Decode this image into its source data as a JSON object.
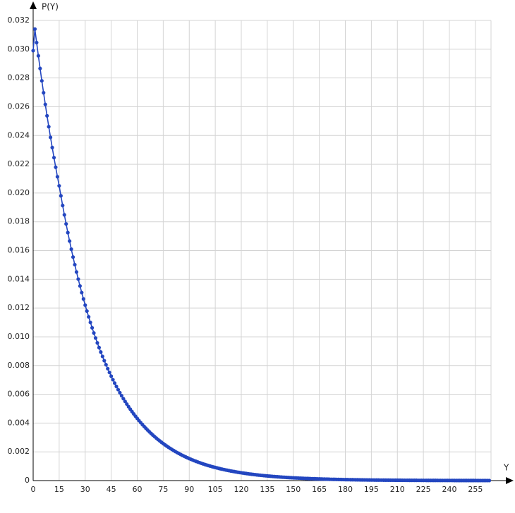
{
  "chart_data": {
    "type": "line",
    "x_label": "Y",
    "y_label": "P(Y)",
    "xlim": [
      0,
      264
    ],
    "ylim": [
      0,
      0.032
    ],
    "xticks": [
      0,
      15,
      30,
      45,
      60,
      75,
      90,
      105,
      120,
      135,
      150,
      165,
      180,
      195,
      210,
      225,
      240,
      255
    ],
    "yticks": [
      0,
      0.002,
      0.004,
      0.006,
      0.008,
      {
        "value": 0.01,
        "label": "0.010"
      },
      0.012,
      0.014,
      0.016,
      0.018,
      {
        "value": 0.02,
        "label": "0.020"
      },
      0.022,
      0.024,
      0.026,
      0.028,
      {
        "value": 0.03,
        "label": "0.030"
      },
      0.032
    ],
    "grid": true,
    "x": [
      0,
      1,
      2,
      3,
      4,
      5,
      6,
      7,
      8,
      9,
      10,
      11,
      12,
      13,
      14,
      15,
      16,
      17,
      18,
      19,
      20,
      21,
      22,
      23,
      24,
      25,
      26,
      27,
      28,
      29,
      30,
      31,
      32,
      33,
      34,
      35,
      36,
      37,
      38,
      39,
      40,
      41,
      42,
      43,
      44,
      45,
      46,
      47,
      48,
      49,
      50,
      51,
      52,
      53,
      54,
      55,
      56,
      57,
      58,
      59,
      60,
      61,
      62,
      63,
      64,
      65,
      66,
      67,
      68,
      69,
      70,
      71,
      72,
      73,
      74,
      75,
      76,
      77,
      78,
      79,
      80,
      81,
      82,
      83,
      84,
      85,
      86,
      87,
      88,
      89,
      90,
      91,
      92,
      93,
      94,
      95,
      96,
      97,
      98,
      99,
      100,
      101,
      102,
      103,
      104,
      105,
      106,
      107,
      108,
      109,
      110,
      111,
      112,
      113,
      114,
      115,
      116,
      117,
      118,
      119,
      120,
      121,
      122,
      123,
      124,
      125,
      126,
      127,
      128,
      129,
      130,
      131,
      132,
      133,
      134,
      135,
      136,
      137,
      138,
      139,
      140,
      141,
      142,
      143,
      144,
      145,
      146,
      147,
      148,
      149,
      150,
      151,
      152,
      153,
      154,
      155,
      156,
      157,
      158,
      159,
      160,
      161,
      162,
      163,
      164,
      165,
      166,
      167,
      168,
      169,
      170,
      171,
      172,
      173,
      174,
      175,
      176,
      177,
      178,
      179,
      180,
      181,
      182,
      183,
      184,
      185,
      186,
      187,
      188,
      189,
      190,
      191,
      192,
      193,
      194,
      195,
      196,
      197,
      198,
      199,
      200,
      201,
      202,
      203,
      204,
      205,
      206,
      207,
      208,
      209,
      210,
      211,
      212,
      213,
      214,
      215,
      216,
      217,
      218,
      219,
      220,
      221,
      222,
      223,
      224,
      225,
      226,
      227,
      228,
      229,
      230,
      231,
      232,
      233,
      234,
      235,
      236,
      237,
      238,
      239,
      240,
      241,
      242,
      243,
      244,
      245,
      246,
      247,
      248,
      249,
      250,
      251,
      252,
      253,
      254,
      255,
      256,
      257,
      258,
      259,
      260,
      261,
      262,
      263
    ],
    "series": [
      {
        "color": "#2346c0",
        "values": [
          0.0299,
          0.0314,
          0.03046,
          0.02954,
          0.02866,
          0.0278,
          0.02697,
          0.02616,
          0.02537,
          0.02461,
          0.02387,
          0.02316,
          0.02246,
          0.02179,
          0.02113,
          0.0205,
          0.019803,
          0.01913,
          0.01848,
          0.017851,
          0.017244,
          0.016658,
          0.016092,
          0.015545,
          0.015016,
          0.014505,
          0.014012,
          0.013536,
          0.013076,
          0.012631,
          0.012202,
          0.011787,
          0.011386,
          0.010999,
          0.010625,
          0.010264,
          0.009915,
          0.009578,
          0.009252,
          0.008938,
          0.008634,
          0.00834,
          0.008057,
          0.007783,
          0.007518,
          0.007263,
          0.007016,
          0.006777,
          0.006547,
          0.006324,
          0.006109,
          0.005902,
          0.005701,
          0.005507,
          0.00532,
          0.005139,
          0.004964,
          0.004796,
          0.004633,
          0.004475,
          0.004323,
          0.004176,
          0.004034,
          0.003897,
          0.003765,
          0.003637,
          0.003513,
          0.003394,
          0.003278,
          0.003167,
          0.003059,
          0.002955,
          0.002855,
          0.002758,
          0.002664,
          0.002573,
          0.002486,
          0.002401,
          0.00232,
          0.002241,
          0.002165,
          0.002091,
          0.00202,
          0.001951,
          0.001885,
          0.001821,
          0.001759,
          0.001699,
          0.001641,
          0.001586,
          0.001532,
          0.00148,
          0.001429,
          0.001381,
          0.001334,
          0.001288,
          0.001245,
          0.001202,
          0.001162,
          0.001122,
          0.001084,
          0.001047,
          0.001012,
          0.000977,
          0.000944,
          0.000912,
          0.000881,
          0.000851,
          0.000822,
          0.000794,
          0.000767,
          0.000741,
          0.000716,
          0.000692,
          0.000668,
          0.000646,
          0.000624,
          0.000602,
          0.000582,
          0.000562,
          0.000543,
          0.000525,
          0.000507,
          0.00049,
          0.000473,
          0.000457,
          0.000441,
          0.000426,
          0.000412,
          0.000398,
          0.000384,
          0.000371,
          0.000359,
          0.000347,
          0.000335,
          0.000323,
          0.000312,
          0.000302,
          0.000292,
          0.000282,
          0.000272,
          0.000263,
          0.000254,
          0.000245,
          0.000237,
          0.000229,
          0.000221,
          0.000214,
          0.000206,
          0.000199,
          0.000193,
          0.000186,
          0.00018,
          0.000174,
          0.000168,
          0.000162,
          0.000157,
          0.000151,
          0.000146,
          0.000141,
          0.000136,
          0.000132,
          0.000127,
          0.000123,
          0.000119,
          0.000115,
          0.000111,
          0.000107,
          0.000103,
          0.0001,
          9.7e-05,
          9.3e-05,
          9e-05,
          8.7e-05,
          8.4e-05,
          8.1e-05,
          7.8e-05,
          7.6e-05,
          7.3e-05,
          7.1e-05,
          6.8e-05,
          6.6e-05,
          6.4e-05,
          6.2e-05,
          6e-05,
          5.8e-05,
          5.6e-05,
          5.4e-05,
          5.2e-05,
          5e-05,
          4.8e-05,
          4.7e-05,
          4.5e-05,
          4.4e-05,
          4.2e-05,
          4.1e-05,
          3.9e-05,
          3.8e-05,
          3.7e-05,
          3.6e-05,
          3.4e-05,
          3.3e-05,
          3.2e-05,
          3.1e-05,
          3e-05,
          2.9e-05,
          2.8e-05,
          2.7e-05,
          2.6e-05,
          2.5e-05,
          2.4e-05,
          2.3e-05,
          2.3e-05,
          2.2e-05,
          2.1e-05,
          2e-05,
          2e-05,
          1.9e-05,
          1.8e-05,
          1.8e-05,
          1.7e-05,
          1.7e-05,
          1.6e-05,
          1.5e-05,
          1.5e-05,
          1.4e-05,
          1.4e-05,
          1.3e-05,
          1.3e-05,
          1.2e-05,
          1.2e-05,
          1.2e-05,
          1.1e-05,
          1.1e-05,
          1e-05,
          1e-05,
          1e-05,
          9e-06,
          9e-06,
          9e-06,
          8e-06,
          8e-06,
          8e-06,
          7e-06,
          7e-06,
          7e-06,
          7e-06,
          6e-06,
          6e-06,
          6e-06,
          6e-06,
          5e-06,
          5e-06,
          5e-06,
          5e-06,
          5e-06,
          4e-06,
          4e-06,
          4e-06,
          4e-06,
          4e-06,
          4e-06,
          3e-06,
          3e-06
        ]
      }
    ]
  }
}
